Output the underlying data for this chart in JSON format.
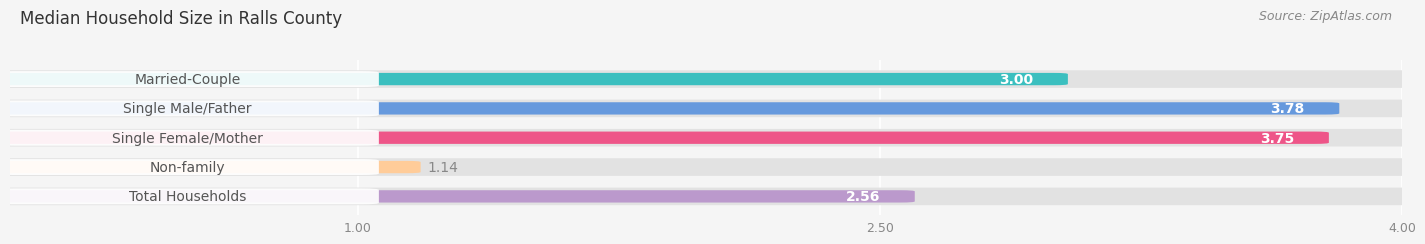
{
  "title": "Median Household Size in Ralls County",
  "source": "Source: ZipAtlas.com",
  "categories": [
    "Married-Couple",
    "Single Male/Father",
    "Single Female/Mother",
    "Non-family",
    "Total Households"
  ],
  "values": [
    3.0,
    3.78,
    3.75,
    1.14,
    2.56
  ],
  "bar_colors": [
    "#3BBFBF",
    "#6699DD",
    "#EE5588",
    "#FFCC99",
    "#BB99CC"
  ],
  "xlim": [
    0,
    4.0
  ],
  "xticks": [
    1.0,
    2.5,
    4.0
  ],
  "xtick_labels": [
    "1.00",
    "2.50",
    "4.00"
  ],
  "background_color": "#f5f5f5",
  "track_color": "#e2e2e2",
  "label_bg_color": "#ffffff",
  "label_text_color": "#555555",
  "value_text_color_inside": "#ffffff",
  "value_text_color_outside": "#888888",
  "title_fontsize": 12,
  "source_fontsize": 9,
  "label_fontsize": 10,
  "value_fontsize": 10
}
